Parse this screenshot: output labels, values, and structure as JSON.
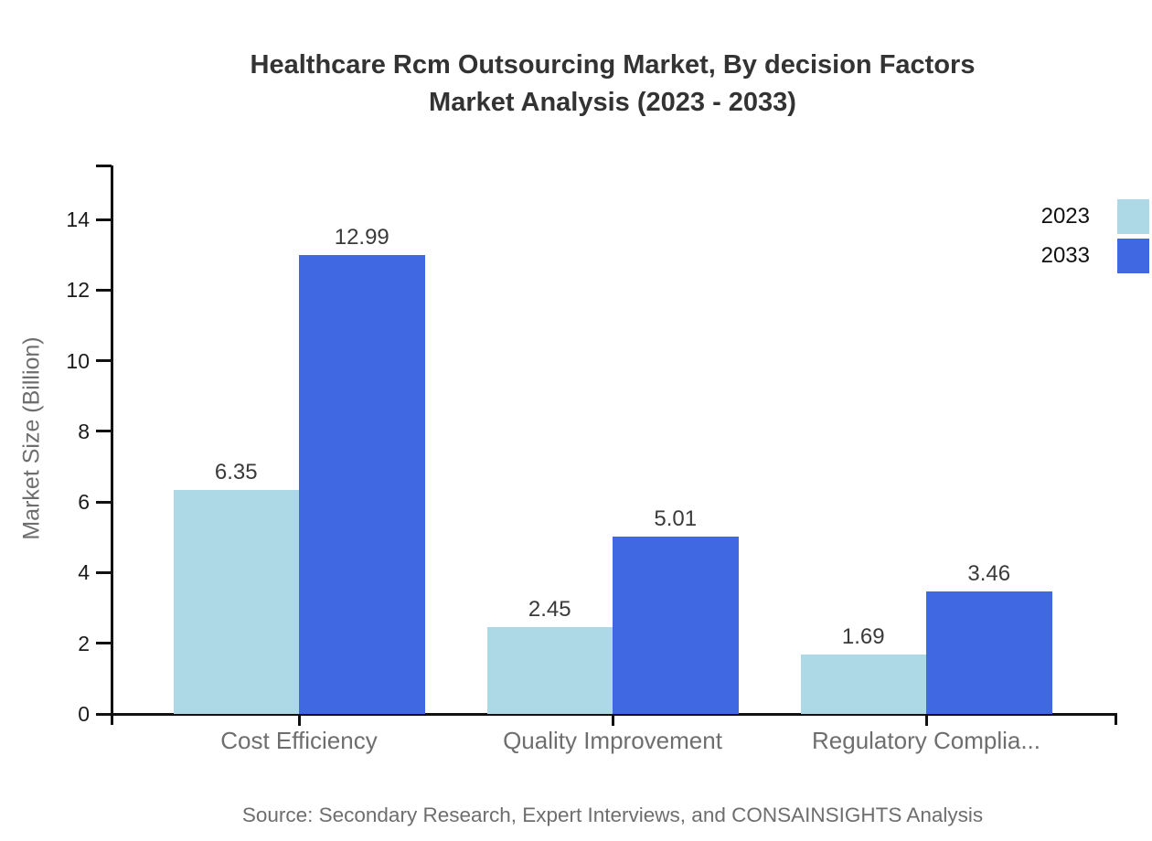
{
  "title": {
    "line1": "Healthcare Rcm Outsourcing Market, By decision Factors",
    "line2": "Market Analysis (2023 - 2033)"
  },
  "source_note": "Source: Secondary Research, Expert Interviews, and CONSAINSIGHTS Analysis",
  "chart_data": {
    "type": "bar",
    "title": "Healthcare Rcm Outsourcing Market, By decision Factors Market Analysis (2023 - 2033)",
    "categories": [
      "Cost Efficiency",
      "Quality Improvement",
      "Regulatory Complia..."
    ],
    "series": [
      {
        "name": "2023",
        "color": "#ADD8E6",
        "values": [
          6.35,
          2.45,
          1.69
        ]
      },
      {
        "name": "2033",
        "color": "#4168E3",
        "values": [
          12.99,
          5.01,
          3.46
        ]
      }
    ],
    "xlabel": "",
    "ylabel": "Market Size (Billion)",
    "ylim": [
      0,
      15.5
    ],
    "yticks": [
      0,
      2,
      4,
      6,
      8,
      10,
      12,
      14
    ],
    "grid": false,
    "value_labels": true,
    "legend_position": "top-right"
  },
  "colors": {
    "axis": "#111111",
    "title_text": "#333333",
    "tick_label": "#1b1b1b",
    "category_label": "#6e6e6e",
    "value_label": "#3a3a3a",
    "series_2023": "#ADD8E6",
    "series_2033": "#4168E3"
  }
}
